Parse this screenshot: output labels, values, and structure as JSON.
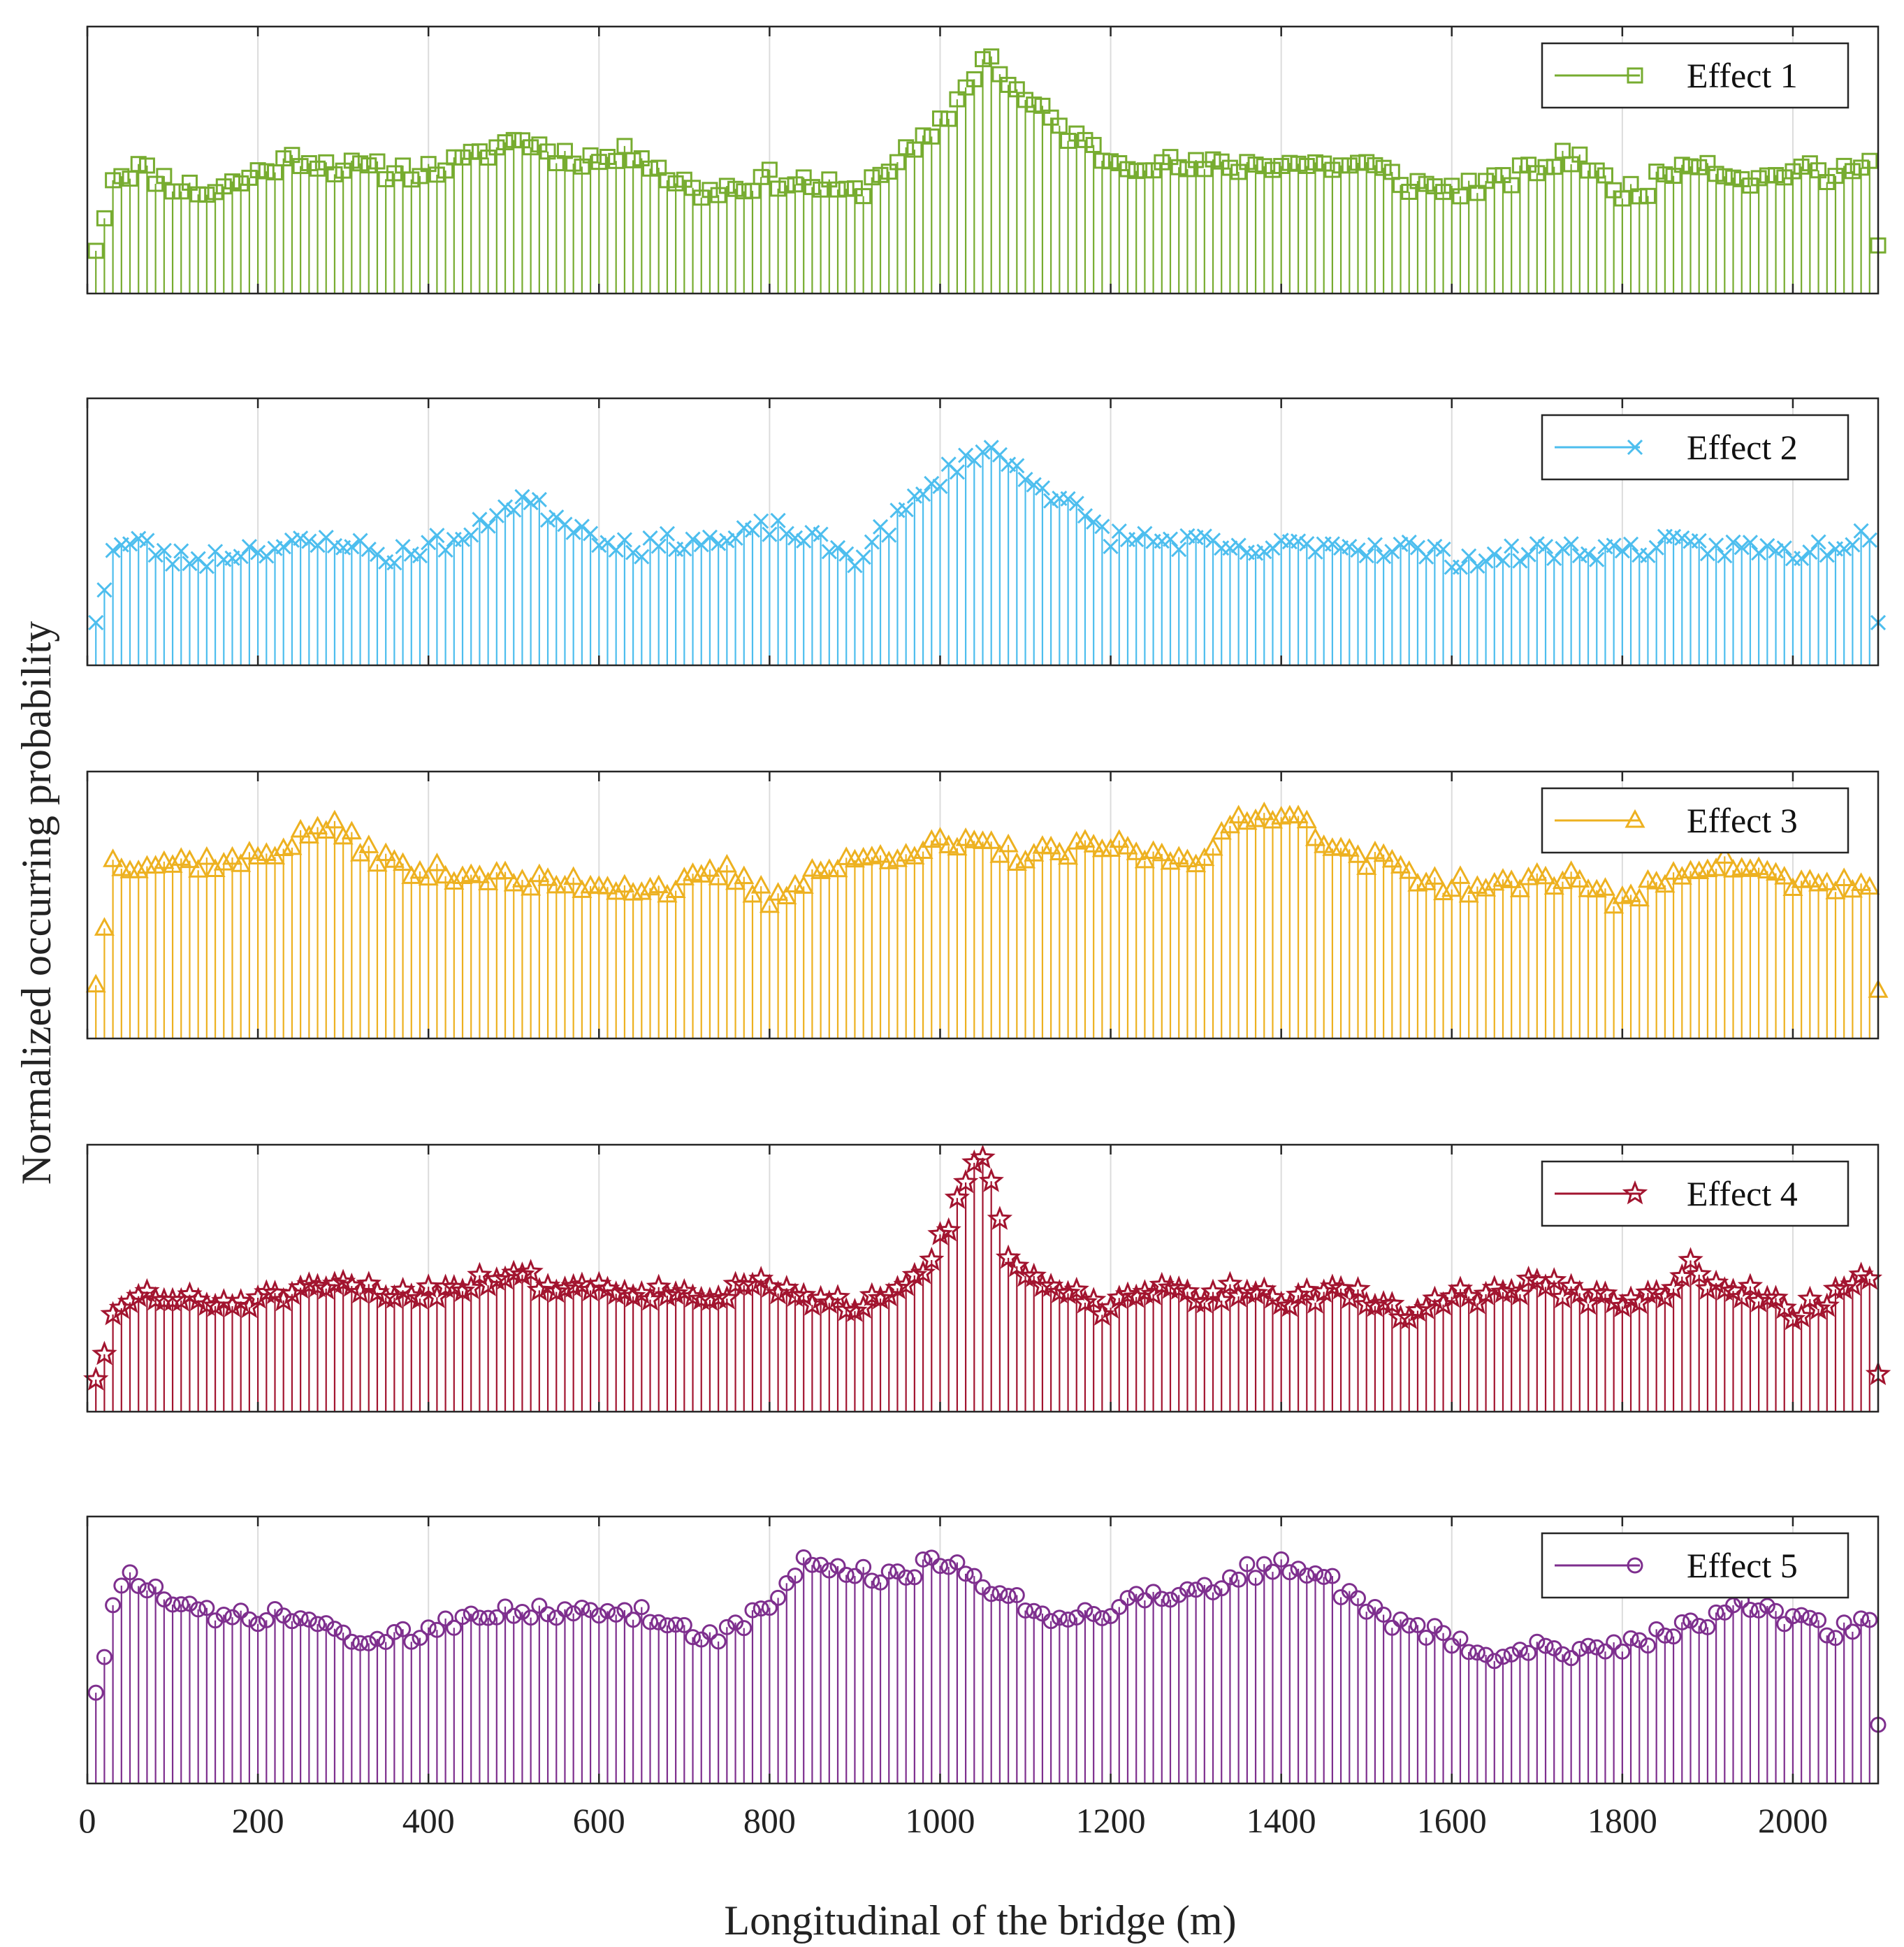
{
  "chart_data": {
    "type": "stem",
    "xlabel": "Longitudinal of the bridge (m)",
    "ylabel": "Normalized occurring probability",
    "xlim": [
      0,
      2100
    ],
    "x_ticks": [
      "0",
      "200",
      "400",
      "600",
      "800",
      "1000",
      "1200",
      "1400",
      "1600",
      "1800",
      "2000"
    ],
    "ylim": [
      0,
      1
    ],
    "grid": "vertical",
    "legend_position": "top-right",
    "x_start": 10,
    "x_step": 10,
    "x_count": 210,
    "series": [
      {
        "name": "Effect 1",
        "color": "#77AC30",
        "marker": "square",
        "anchors": [
          [
            10,
            0.16
          ],
          [
            30,
            0.44
          ],
          [
            60,
            0.47
          ],
          [
            100,
            0.41
          ],
          [
            140,
            0.38
          ],
          [
            180,
            0.42
          ],
          [
            220,
            0.48
          ],
          [
            250,
            0.51
          ],
          [
            300,
            0.47
          ],
          [
            350,
            0.46
          ],
          [
            400,
            0.46
          ],
          [
            450,
            0.5
          ],
          [
            480,
            0.55
          ],
          [
            510,
            0.58
          ],
          [
            550,
            0.52
          ],
          [
            600,
            0.5
          ],
          [
            650,
            0.53
          ],
          [
            680,
            0.44
          ],
          [
            720,
            0.38
          ],
          [
            760,
            0.4
          ],
          [
            800,
            0.43
          ],
          [
            850,
            0.41
          ],
          [
            900,
            0.37
          ],
          [
            940,
            0.48
          ],
          [
            990,
            0.58
          ],
          [
            1020,
            0.72
          ],
          [
            1040,
            0.83
          ],
          [
            1060,
            0.9
          ],
          [
            1080,
            0.78
          ],
          [
            1110,
            0.7
          ],
          [
            1150,
            0.6
          ],
          [
            1200,
            0.5
          ],
          [
            1250,
            0.49
          ],
          [
            1300,
            0.47
          ],
          [
            1350,
            0.48
          ],
          [
            1400,
            0.49
          ],
          [
            1450,
            0.48
          ],
          [
            1500,
            0.48
          ],
          [
            1550,
            0.41
          ],
          [
            1600,
            0.39
          ],
          [
            1650,
            0.41
          ],
          [
            1700,
            0.47
          ],
          [
            1750,
            0.52
          ],
          [
            1790,
            0.38
          ],
          [
            1830,
            0.4
          ],
          [
            1880,
            0.51
          ],
          [
            1920,
            0.46
          ],
          [
            1960,
            0.42
          ],
          [
            2000,
            0.47
          ],
          [
            2050,
            0.43
          ],
          [
            2090,
            0.53
          ],
          [
            2100,
            0.18
          ]
        ],
        "jitter": 0.035,
        "seed": 11
      },
      {
        "name": "Effect 2",
        "color": "#4DBEEE",
        "marker": "x",
        "anchors": [
          [
            10,
            0.16
          ],
          [
            30,
            0.44
          ],
          [
            60,
            0.46
          ],
          [
            100,
            0.4
          ],
          [
            140,
            0.4
          ],
          [
            200,
            0.44
          ],
          [
            260,
            0.45
          ],
          [
            300,
            0.47
          ],
          [
            350,
            0.4
          ],
          [
            400,
            0.45
          ],
          [
            450,
            0.48
          ],
          [
            480,
            0.58
          ],
          [
            510,
            0.62
          ],
          [
            550,
            0.56
          ],
          [
            600,
            0.48
          ],
          [
            650,
            0.44
          ],
          [
            700,
            0.47
          ],
          [
            750,
            0.46
          ],
          [
            800,
            0.52
          ],
          [
            850,
            0.47
          ],
          [
            900,
            0.4
          ],
          [
            950,
            0.55
          ],
          [
            1000,
            0.7
          ],
          [
            1040,
            0.8
          ],
          [
            1060,
            0.8
          ],
          [
            1100,
            0.72
          ],
          [
            1150,
            0.6
          ],
          [
            1200,
            0.48
          ],
          [
            1250,
            0.47
          ],
          [
            1300,
            0.46
          ],
          [
            1350,
            0.42
          ],
          [
            1400,
            0.44
          ],
          [
            1450,
            0.46
          ],
          [
            1500,
            0.44
          ],
          [
            1550,
            0.44
          ],
          [
            1600,
            0.4
          ],
          [
            1650,
            0.4
          ],
          [
            1700,
            0.43
          ],
          [
            1750,
            0.43
          ],
          [
            1800,
            0.43
          ],
          [
            1850,
            0.45
          ],
          [
            1900,
            0.44
          ],
          [
            1950,
            0.44
          ],
          [
            2000,
            0.42
          ],
          [
            2050,
            0.45
          ],
          [
            2090,
            0.5
          ],
          [
            2100,
            0.16
          ]
        ],
        "jitter": 0.035,
        "seed": 23
      },
      {
        "name": "Effect 3",
        "color": "#EDB120",
        "marker": "triangle",
        "anchors": [
          [
            10,
            0.2
          ],
          [
            30,
            0.66
          ],
          [
            100,
            0.66
          ],
          [
            180,
            0.66
          ],
          [
            230,
            0.72
          ],
          [
            280,
            0.8
          ],
          [
            320,
            0.72
          ],
          [
            380,
            0.62
          ],
          [
            450,
            0.62
          ],
          [
            520,
            0.58
          ],
          [
            600,
            0.58
          ],
          [
            680,
            0.56
          ],
          [
            750,
            0.62
          ],
          [
            800,
            0.52
          ],
          [
            850,
            0.62
          ],
          [
            900,
            0.66
          ],
          [
            950,
            0.7
          ],
          [
            1000,
            0.72
          ],
          [
            1050,
            0.72
          ],
          [
            1100,
            0.68
          ],
          [
            1150,
            0.7
          ],
          [
            1200,
            0.72
          ],
          [
            1250,
            0.68
          ],
          [
            1300,
            0.68
          ],
          [
            1350,
            0.8
          ],
          [
            1400,
            0.86
          ],
          [
            1440,
            0.78
          ],
          [
            1480,
            0.68
          ],
          [
            1530,
            0.66
          ],
          [
            1580,
            0.58
          ],
          [
            1650,
            0.56
          ],
          [
            1700,
            0.6
          ],
          [
            1750,
            0.6
          ],
          [
            1800,
            0.5
          ],
          [
            1850,
            0.6
          ],
          [
            1900,
            0.66
          ],
          [
            1950,
            0.64
          ],
          [
            2000,
            0.58
          ],
          [
            2050,
            0.58
          ],
          [
            2090,
            0.56
          ],
          [
            2100,
            0.18
          ]
        ],
        "jitter": 0.035,
        "seed": 37
      },
      {
        "name": "Effect 4",
        "color": "#A2142F",
        "marker": "star",
        "anchors": [
          [
            10,
            0.12
          ],
          [
            30,
            0.34
          ],
          [
            60,
            0.44
          ],
          [
            100,
            0.42
          ],
          [
            150,
            0.4
          ],
          [
            200,
            0.42
          ],
          [
            250,
            0.44
          ],
          [
            300,
            0.47
          ],
          [
            350,
            0.44
          ],
          [
            400,
            0.45
          ],
          [
            450,
            0.48
          ],
          [
            500,
            0.52
          ],
          [
            550,
            0.46
          ],
          [
            600,
            0.47
          ],
          [
            650,
            0.45
          ],
          [
            700,
            0.44
          ],
          [
            750,
            0.44
          ],
          [
            800,
            0.48
          ],
          [
            850,
            0.4
          ],
          [
            900,
            0.4
          ],
          [
            940,
            0.46
          ],
          [
            980,
            0.54
          ],
          [
            1010,
            0.7
          ],
          [
            1030,
            0.88
          ],
          [
            1050,
            0.98
          ],
          [
            1065,
            0.76
          ],
          [
            1080,
            0.58
          ],
          [
            1110,
            0.48
          ],
          [
            1150,
            0.44
          ],
          [
            1200,
            0.38
          ],
          [
            1250,
            0.46
          ],
          [
            1300,
            0.42
          ],
          [
            1350,
            0.46
          ],
          [
            1400,
            0.42
          ],
          [
            1450,
            0.44
          ],
          [
            1500,
            0.43
          ],
          [
            1540,
            0.36
          ],
          [
            1600,
            0.43
          ],
          [
            1650,
            0.44
          ],
          [
            1700,
            0.48
          ],
          [
            1750,
            0.44
          ],
          [
            1800,
            0.4
          ],
          [
            1850,
            0.44
          ],
          [
            1880,
            0.54
          ],
          [
            1920,
            0.44
          ],
          [
            1960,
            0.44
          ],
          [
            2000,
            0.36
          ],
          [
            2050,
            0.44
          ],
          [
            2090,
            0.52
          ],
          [
            2100,
            0.14
          ]
        ],
        "jitter": 0.03,
        "seed": 51
      },
      {
        "name": "Effect 5",
        "color": "#7E2F8E",
        "marker": "circle",
        "anchors": [
          [
            10,
            0.34
          ],
          [
            30,
            0.64
          ],
          [
            50,
            0.8
          ],
          [
            100,
            0.66
          ],
          [
            150,
            0.62
          ],
          [
            200,
            0.62
          ],
          [
            250,
            0.62
          ],
          [
            300,
            0.56
          ],
          [
            350,
            0.52
          ],
          [
            400,
            0.58
          ],
          [
            450,
            0.64
          ],
          [
            500,
            0.66
          ],
          [
            550,
            0.62
          ],
          [
            600,
            0.64
          ],
          [
            650,
            0.64
          ],
          [
            700,
            0.58
          ],
          [
            750,
            0.56
          ],
          [
            800,
            0.66
          ],
          [
            840,
            0.84
          ],
          [
            900,
            0.78
          ],
          [
            950,
            0.78
          ],
          [
            1000,
            0.82
          ],
          [
            1050,
            0.76
          ],
          [
            1100,
            0.66
          ],
          [
            1150,
            0.62
          ],
          [
            1200,
            0.66
          ],
          [
            1250,
            0.7
          ],
          [
            1300,
            0.72
          ],
          [
            1350,
            0.78
          ],
          [
            1400,
            0.82
          ],
          [
            1440,
            0.8
          ],
          [
            1480,
            0.7
          ],
          [
            1530,
            0.6
          ],
          [
            1580,
            0.56
          ],
          [
            1620,
            0.5
          ],
          [
            1660,
            0.48
          ],
          [
            1700,
            0.52
          ],
          [
            1750,
            0.5
          ],
          [
            1800,
            0.52
          ],
          [
            1850,
            0.56
          ],
          [
            1900,
            0.62
          ],
          [
            1950,
            0.66
          ],
          [
            2000,
            0.6
          ],
          [
            2050,
            0.58
          ],
          [
            2090,
            0.6
          ],
          [
            2100,
            0.22
          ]
        ],
        "jitter": 0.035,
        "seed": 73
      }
    ]
  }
}
